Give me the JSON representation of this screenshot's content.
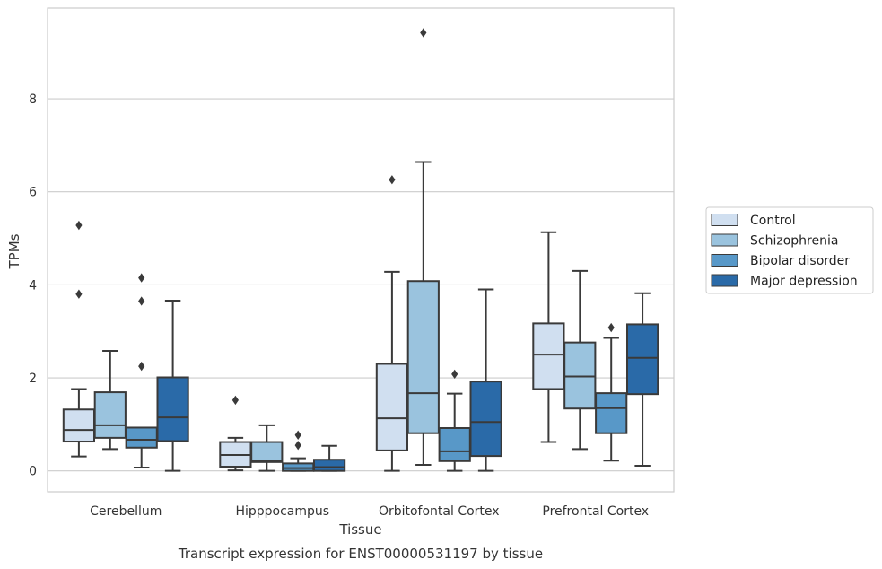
{
  "caption": "Transcript expression for ENST00000531197 by tissue",
  "chart_data": {
    "type": "boxplot",
    "title": "",
    "xlabel": "Tissue",
    "ylabel": "TPMs",
    "categories": [
      "Cerebellum",
      "Hipppocampus",
      "Orbitofontal Cortex",
      "Prefrontal Cortex"
    ],
    "ylim": [
      -0.45,
      9.95
    ],
    "yticks": [
      0,
      2,
      4,
      6,
      8
    ],
    "grid": true,
    "legend_position": "right",
    "series": [
      {
        "name": "Control",
        "color": "#d0dff0",
        "boxes": [
          {
            "whislo": 0.31,
            "q1": 0.63,
            "med": 0.88,
            "q3": 1.32,
            "whishi": 1.76,
            "fliers": [
              3.8,
              5.28
            ]
          },
          {
            "whislo": 0.01,
            "q1": 0.09,
            "med": 0.34,
            "q3": 0.62,
            "whishi": 0.71,
            "fliers": [
              1.52
            ]
          },
          {
            "whislo": 0.0,
            "q1": 0.44,
            "med": 1.13,
            "q3": 2.3,
            "whishi": 4.28,
            "fliers": [
              6.26
            ]
          },
          {
            "whislo": 0.62,
            "q1": 1.76,
            "med": 2.5,
            "q3": 3.17,
            "whishi": 5.13,
            "fliers": []
          }
        ]
      },
      {
        "name": "Schizophrenia",
        "color": "#9ac3de",
        "boxes": [
          {
            "whislo": 0.47,
            "q1": 0.71,
            "med": 0.98,
            "q3": 1.69,
            "whishi": 2.58,
            "fliers": []
          },
          {
            "whislo": 0.0,
            "q1": 0.19,
            "med": 0.21,
            "q3": 0.62,
            "whishi": 0.98,
            "fliers": []
          },
          {
            "whislo": 0.13,
            "q1": 0.81,
            "med": 1.67,
            "q3": 4.08,
            "whishi": 6.64,
            "fliers": [
              9.42
            ]
          },
          {
            "whislo": 0.47,
            "q1": 1.34,
            "med": 2.03,
            "q3": 2.76,
            "whishi": 4.3,
            "fliers": []
          }
        ]
      },
      {
        "name": "Bipolar disorder",
        "color": "#5898c8",
        "boxes": [
          {
            "whislo": 0.07,
            "q1": 0.5,
            "med": 0.67,
            "q3": 0.93,
            "whishi": 0.93,
            "fliers": [
              2.25,
              3.65,
              4.15
            ]
          },
          {
            "whislo": 0.0,
            "q1": 0.0,
            "med": 0.06,
            "q3": 0.16,
            "whishi": 0.27,
            "fliers": [
              0.55,
              0.77
            ]
          },
          {
            "whislo": 0.0,
            "q1": 0.21,
            "med": 0.42,
            "q3": 0.92,
            "whishi": 1.66,
            "fliers": [
              2.08
            ]
          },
          {
            "whislo": 0.22,
            "q1": 0.81,
            "med": 1.35,
            "q3": 1.67,
            "whishi": 2.86,
            "fliers": [
              3.08
            ]
          }
        ]
      },
      {
        "name": "Major depression",
        "color": "#2a6aa8",
        "boxes": [
          {
            "whislo": 0.0,
            "q1": 0.64,
            "med": 1.15,
            "q3": 2.01,
            "whishi": 3.66,
            "fliers": []
          },
          {
            "whislo": 0.0,
            "q1": 0.0,
            "med": 0.08,
            "q3": 0.24,
            "whishi": 0.54,
            "fliers": []
          },
          {
            "whislo": 0.0,
            "q1": 0.32,
            "med": 1.05,
            "q3": 1.92,
            "whishi": 3.9,
            "fliers": []
          },
          {
            "whislo": 0.11,
            "q1": 1.65,
            "med": 2.43,
            "q3": 3.15,
            "whishi": 3.82,
            "fliers": []
          }
        ]
      }
    ]
  }
}
